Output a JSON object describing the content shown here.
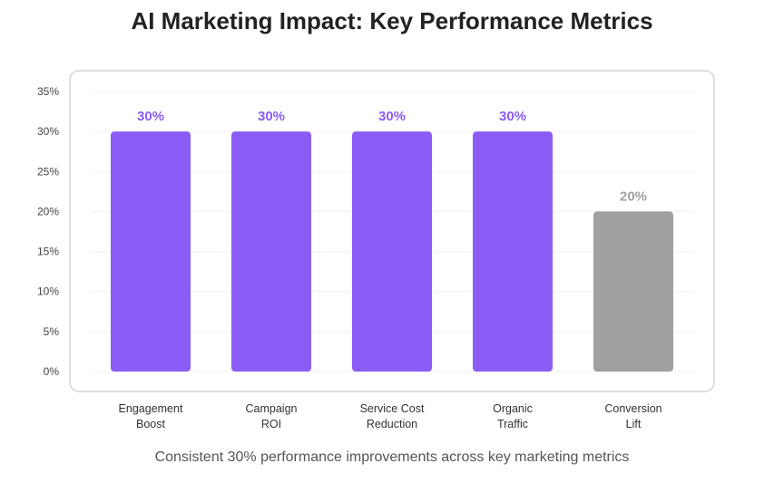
{
  "chart_data": {
    "type": "bar",
    "title": "AI Marketing Impact: Key Performance Metrics",
    "caption": "Consistent 30% performance improvements across key marketing metrics",
    "categories": [
      [
        "Engagement",
        "Boost"
      ],
      [
        "Campaign",
        "ROI"
      ],
      [
        "Service Cost",
        "Reduction"
      ],
      [
        "Organic",
        "Traffic"
      ],
      [
        "Conversion",
        "Lift"
      ]
    ],
    "values": [
      30,
      30,
      30,
      30,
      20
    ],
    "data_labels": [
      "30%",
      "30%",
      "30%",
      "30%",
      "20%"
    ],
    "ylim": [
      0,
      35
    ],
    "yticks": [
      0,
      5,
      10,
      15,
      20,
      25,
      30,
      35
    ],
    "ytick_labels": [
      "0%",
      "5%",
      "10%",
      "15%",
      "20%",
      "25%",
      "30%",
      "35%"
    ],
    "grid": true,
    "legend": "none",
    "colors": {
      "highlight": "#8b5cf6",
      "muted": "#a0a0a0",
      "frame": "#dddddd",
      "grid": "#f0f0f0"
    },
    "bar_colors": [
      "highlight",
      "highlight",
      "highlight",
      "highlight",
      "muted"
    ]
  }
}
